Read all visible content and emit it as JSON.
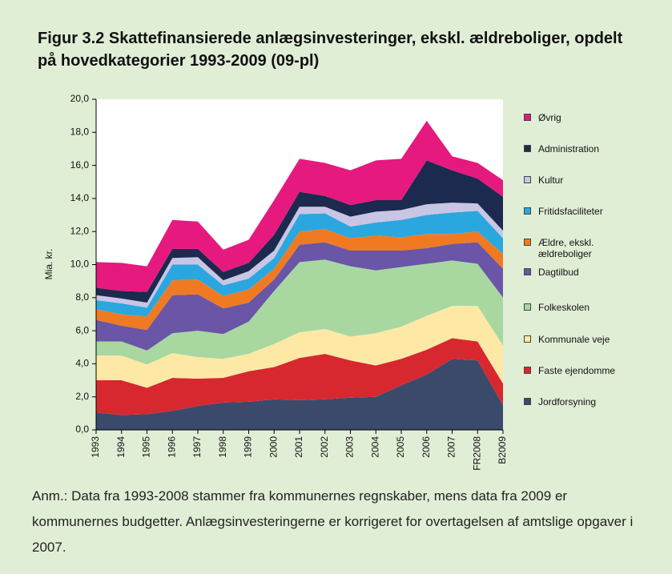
{
  "chart_data": {
    "type": "stacked_area",
    "title": "Figur 3.2 Skattefinansierede anlægsinvesteringer, ekskl. ældreboliger, opdelt på hovedkategorier 1993-2009 (09-pl)",
    "ylabel": "Mia. kr.",
    "note": "Anm.: Data fra 1993-2008 stammer fra kommunernes regnskaber, mens data fra 2009 er kommunernes budgetter. Anlægsinvesteringerne er korrigeret for overtagelsen af amtslige opgaver i 2007.",
    "categories": [
      "1993",
      "1994",
      "1995",
      "1996",
      "1997",
      "1998",
      "1999",
      "2000",
      "2001",
      "2002",
      "2003",
      "2004",
      "2005",
      "2006",
      "2007",
      "FR2008",
      "B2009"
    ],
    "ylim": [
      0,
      20
    ],
    "yticks": [
      {
        "value": 0,
        "label": "0,0"
      },
      {
        "value": 2,
        "label": "2,0"
      },
      {
        "value": 4,
        "label": "4,0"
      },
      {
        "value": 6,
        "label": "6,0"
      },
      {
        "value": 8,
        "label": "8,0"
      },
      {
        "value": 10,
        "label": "10,0"
      },
      {
        "value": 12,
        "label": "12,0"
      },
      {
        "value": 14,
        "label": "14,0"
      },
      {
        "value": 16,
        "label": "16,0"
      },
      {
        "value": 18,
        "label": "18,0"
      },
      {
        "value": 20,
        "label": "20,0"
      }
    ],
    "grid": false,
    "legend": "right",
    "series": [
      {
        "name": "Jordforsyning",
        "color": "#3b4a6b",
        "values": [
          1.05,
          0.9,
          0.95,
          1.15,
          1.45,
          1.65,
          1.7,
          1.85,
          1.8,
          1.85,
          1.95,
          2.0,
          2.7,
          3.35,
          4.3,
          4.2,
          1.5
        ]
      },
      {
        "name": "Faste ejendomme",
        "color": "#d7282f",
        "values": [
          1.95,
          2.1,
          1.6,
          2.0,
          1.65,
          1.5,
          1.85,
          1.95,
          2.55,
          2.75,
          2.25,
          1.9,
          1.6,
          1.5,
          1.25,
          1.15,
          1.3
        ]
      },
      {
        "name": "Kommunale veje",
        "color": "#fde9a5",
        "values": [
          1.5,
          1.5,
          1.4,
          1.5,
          1.3,
          1.15,
          1.05,
          1.4,
          1.55,
          1.5,
          1.45,
          1.95,
          1.95,
          2.05,
          1.95,
          2.15,
          2.3
        ]
      },
      {
        "name": "Folkeskolen",
        "color": "#a8d8a0",
        "values": [
          0.85,
          0.85,
          0.85,
          1.2,
          1.6,
          1.5,
          1.95,
          3.2,
          4.25,
          4.2,
          4.25,
          3.8,
          3.6,
          3.15,
          2.75,
          2.55,
          2.9
        ]
      },
      {
        "name": "Dagtilbud",
        "color": "#6a55a6",
        "values": [
          1.3,
          0.95,
          1.25,
          2.3,
          2.2,
          1.55,
          1.15,
          0.7,
          1.05,
          1.05,
          0.95,
          1.2,
          1.0,
          0.95,
          1.0,
          1.3,
          1.75
        ]
      },
      {
        "name": "Ældre, ekskl. ældreboliger",
        "color": "#f07a22",
        "values": [
          0.65,
          0.7,
          0.8,
          0.9,
          0.9,
          0.75,
          0.8,
          0.65,
          0.8,
          0.8,
          0.75,
          0.9,
          0.8,
          0.85,
          0.6,
          0.65,
          0.9
        ]
      },
      {
        "name": "Fritidsfaciliteter",
        "color": "#2aa7df",
        "values": [
          0.55,
          0.65,
          0.55,
          0.95,
          0.9,
          0.65,
          0.65,
          0.65,
          1.05,
          0.95,
          0.7,
          0.8,
          1.05,
          1.15,
          1.3,
          1.25,
          0.95
        ]
      },
      {
        "name": "Kultur",
        "color": "#c9c5e4",
        "values": [
          0.3,
          0.3,
          0.3,
          0.4,
          0.45,
          0.3,
          0.45,
          0.45,
          0.45,
          0.4,
          0.6,
          0.65,
          0.6,
          0.65,
          0.6,
          0.45,
          0.45
        ]
      },
      {
        "name": "Administration",
        "color": "#1b2a4e",
        "values": [
          0.45,
          0.45,
          0.65,
          0.55,
          0.5,
          0.5,
          0.5,
          0.95,
          0.9,
          0.65,
          0.7,
          0.7,
          0.6,
          2.65,
          1.95,
          1.5,
          2.05
        ]
      },
      {
        "name": "Øvrig",
        "color": "#e5197e",
        "values": [
          1.55,
          1.7,
          1.55,
          1.75,
          1.65,
          1.35,
          1.4,
          2.1,
          2.0,
          2.0,
          2.1,
          2.4,
          2.5,
          2.4,
          0.85,
          0.95,
          1.0
        ]
      }
    ]
  }
}
